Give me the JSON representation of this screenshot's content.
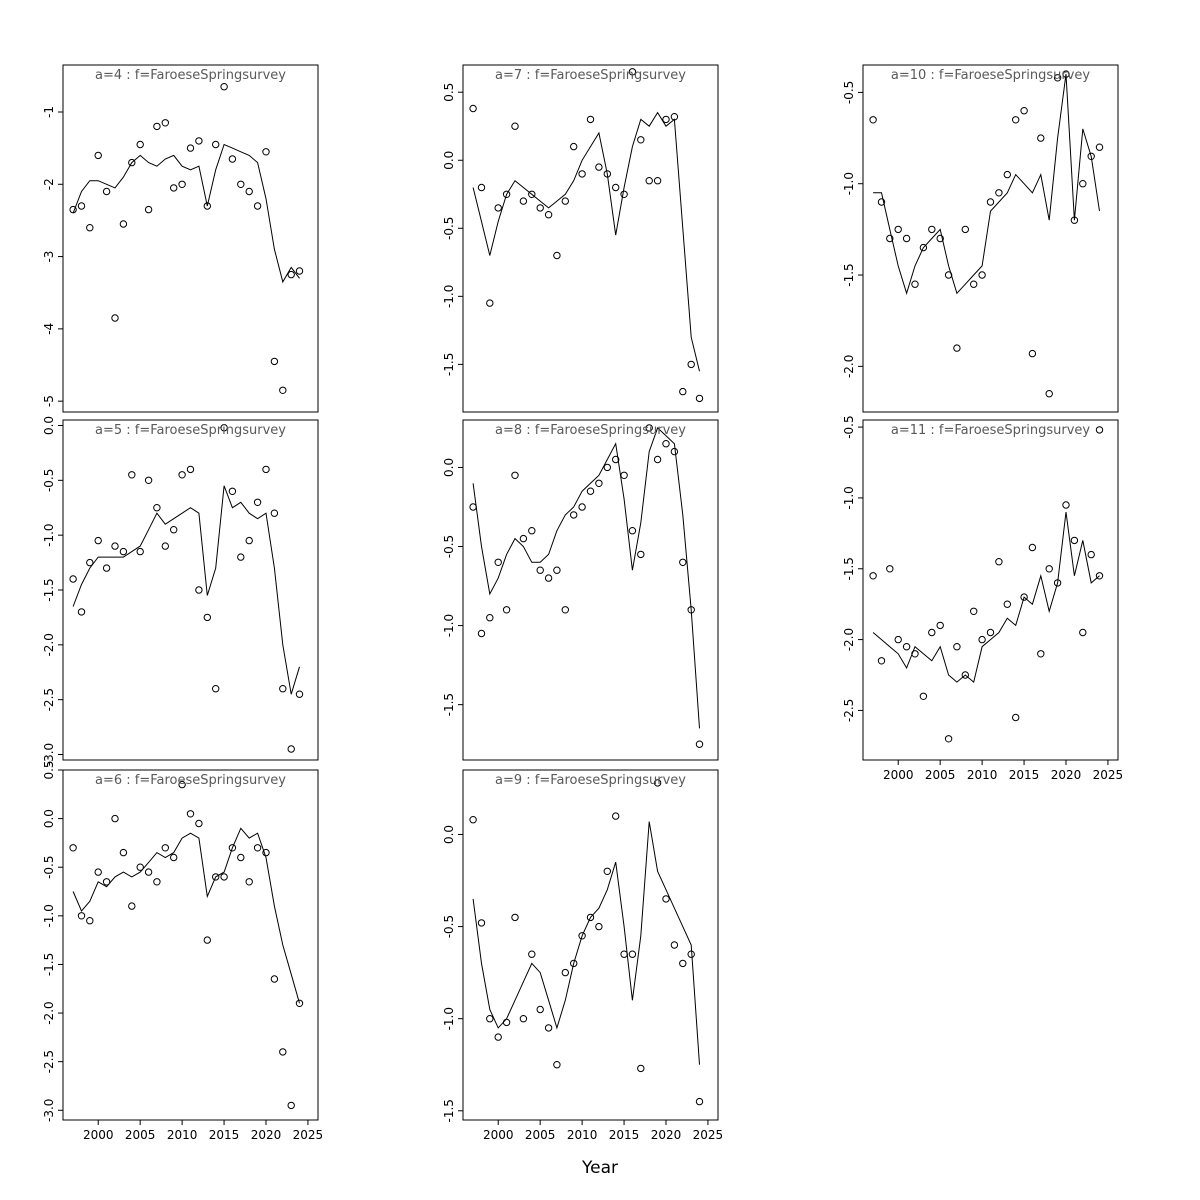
{
  "figure": {
    "xlabel": "Year",
    "xticks": [
      2000,
      2005,
      2010,
      2015,
      2020,
      2025
    ],
    "title_color": "#595959",
    "line_color": "#000000",
    "point_color": "#000000",
    "background": "#ffffff"
  },
  "line_years": [
    1997,
    1998,
    1999,
    2000,
    2001,
    2002,
    2003,
    2004,
    2005,
    2006,
    2007,
    2008,
    2009,
    2010,
    2011,
    2012,
    2013,
    2014,
    2015,
    2016,
    2017,
    2018,
    2019,
    2020,
    2021,
    2022,
    2023,
    2024
  ],
  "chart_data": [
    {
      "type": "scatter+line",
      "a": 4,
      "f": "FaroeseSpringsurvey",
      "title": "a=4  :  f=FaroeseSpringsurvey",
      "xlim": [
        1995.8,
        2026.2
      ],
      "ylim": [
        -5.15,
        -0.35
      ],
      "yticks": [
        -1,
        -2,
        -3,
        -4,
        -5
      ],
      "ytick_labels": [
        "-1",
        "-2",
        "-3",
        "-4",
        "-5"
      ],
      "show_xlabels": false,
      "points": [
        [
          1997,
          -2.35
        ],
        [
          1998,
          -2.3
        ],
        [
          1999,
          -2.6
        ],
        [
          2000,
          -1.6
        ],
        [
          2001,
          -2.1
        ],
        [
          2002,
          -3.85
        ],
        [
          2003,
          -2.55
        ],
        [
          2004,
          -1.7
        ],
        [
          2005,
          -1.45
        ],
        [
          2006,
          -2.35
        ],
        [
          2007,
          -1.2
        ],
        [
          2008,
          -1.15
        ],
        [
          2009,
          -2.05
        ],
        [
          2010,
          -2.0
        ],
        [
          2011,
          -1.5
        ],
        [
          2012,
          -1.4
        ],
        [
          2013,
          -2.3
        ],
        [
          2014,
          -1.45
        ],
        [
          2015,
          -0.65
        ],
        [
          2016,
          -1.65
        ],
        [
          2017,
          -2.0
        ],
        [
          2018,
          -2.1
        ],
        [
          2019,
          -2.3
        ],
        [
          2020,
          -1.55
        ],
        [
          2021,
          -4.45
        ],
        [
          2022,
          -4.85
        ],
        [
          2023,
          -3.25
        ],
        [
          2024,
          -3.2
        ]
      ],
      "line": [
        -2.4,
        -2.1,
        -1.95,
        -1.95,
        -2.0,
        -2.05,
        -1.9,
        -1.7,
        -1.6,
        -1.7,
        -1.75,
        -1.65,
        -1.6,
        -1.75,
        -1.8,
        -1.75,
        -2.3,
        -1.8,
        -1.45,
        -1.5,
        -1.55,
        -1.6,
        -1.7,
        -2.2,
        -2.9,
        -3.35,
        -3.15,
        -3.3
      ]
    },
    {
      "type": "scatter+line",
      "a": 5,
      "f": "FaroeseSpringsurvey",
      "title": "a=5  :  f=FaroeseSpringsurvey",
      "xlim": [
        1995.8,
        2026.2
      ],
      "ylim": [
        -3.05,
        0.05
      ],
      "yticks": [
        0.0,
        -0.5,
        -1.0,
        -1.5,
        -2.0,
        -2.5,
        -3.0
      ],
      "ytick_labels": [
        "0.0",
        "-0.5",
        "-1.0",
        "-1.5",
        "-2.0",
        "-2.5",
        "-3.0"
      ],
      "show_xlabels": false,
      "points": [
        [
          1997,
          -1.4
        ],
        [
          1998,
          -1.7
        ],
        [
          1999,
          -1.25
        ],
        [
          2000,
          -1.05
        ],
        [
          2001,
          -1.3
        ],
        [
          2002,
          -1.1
        ],
        [
          2003,
          -1.15
        ],
        [
          2004,
          -0.45
        ],
        [
          2005,
          -1.15
        ],
        [
          2006,
          -0.5
        ],
        [
          2007,
          -0.75
        ],
        [
          2008,
          -1.1
        ],
        [
          2009,
          -0.95
        ],
        [
          2010,
          -0.45
        ],
        [
          2011,
          -0.4
        ],
        [
          2012,
          -1.5
        ],
        [
          2013,
          -1.75
        ],
        [
          2014,
          -2.4
        ],
        [
          2015,
          -0.02
        ],
        [
          2016,
          -0.6
        ],
        [
          2017,
          -1.2
        ],
        [
          2018,
          -1.05
        ],
        [
          2019,
          -0.7
        ],
        [
          2020,
          -0.4
        ],
        [
          2021,
          -0.8
        ],
        [
          2022,
          -2.4
        ],
        [
          2023,
          -2.95
        ],
        [
          2024,
          -2.45
        ]
      ],
      "line": [
        -1.65,
        -1.45,
        -1.3,
        -1.2,
        -1.2,
        -1.2,
        -1.2,
        -1.15,
        -1.1,
        -0.95,
        -0.8,
        -0.9,
        -0.85,
        -0.8,
        -0.75,
        -0.8,
        -1.55,
        -1.3,
        -0.55,
        -0.75,
        -0.7,
        -0.8,
        -0.85,
        -0.8,
        -1.3,
        -2.0,
        -2.45,
        -2.2
      ]
    },
    {
      "type": "scatter+line",
      "a": 6,
      "f": "FaroeseSpringsurvey",
      "title": "a=6  :  f=FaroeseSpringsurvey",
      "xlim": [
        1995.8,
        2026.2
      ],
      "ylim": [
        -3.1,
        0.5
      ],
      "yticks": [
        0.5,
        0.0,
        -0.5,
        -1.0,
        -1.5,
        -2.0,
        -2.5,
        -3.0
      ],
      "ytick_labels": [
        "0.5",
        "0.0",
        "-0.5",
        "-1.0",
        "-1.5",
        "-2.0",
        "-2.5",
        "-3.0"
      ],
      "show_xlabels": true,
      "points": [
        [
          1997,
          -0.3
        ],
        [
          1998,
          -1.0
        ],
        [
          1999,
          -1.05
        ],
        [
          2000,
          -0.55
        ],
        [
          2001,
          -0.65
        ],
        [
          2002,
          0.0
        ],
        [
          2003,
          -0.35
        ],
        [
          2004,
          -0.9
        ],
        [
          2005,
          -0.5
        ],
        [
          2006,
          -0.55
        ],
        [
          2007,
          -0.65
        ],
        [
          2008,
          -0.3
        ],
        [
          2009,
          -0.4
        ],
        [
          2010,
          0.35
        ],
        [
          2011,
          0.05
        ],
        [
          2012,
          -0.05
        ],
        [
          2013,
          -1.25
        ],
        [
          2014,
          -0.6
        ],
        [
          2015,
          -0.6
        ],
        [
          2016,
          -0.3
        ],
        [
          2017,
          -0.4
        ],
        [
          2018,
          -0.65
        ],
        [
          2019,
          -0.3
        ],
        [
          2020,
          -0.35
        ],
        [
          2021,
          -1.65
        ],
        [
          2022,
          -2.4
        ],
        [
          2023,
          -2.95
        ],
        [
          2024,
          -1.9
        ]
      ],
      "line": [
        -0.75,
        -0.95,
        -0.85,
        -0.65,
        -0.7,
        -0.6,
        -0.55,
        -0.6,
        -0.55,
        -0.45,
        -0.35,
        -0.4,
        -0.35,
        -0.2,
        -0.15,
        -0.2,
        -0.8,
        -0.6,
        -0.55,
        -0.3,
        -0.1,
        -0.2,
        -0.15,
        -0.4,
        -0.9,
        -1.3,
        -1.6,
        -1.9
      ]
    },
    {
      "type": "scatter+line",
      "a": 7,
      "f": "FaroeseSpringsurvey",
      "title": "a=7  :  f=FaroeseSpringsurvey",
      "xlim": [
        1995.8,
        2026.2
      ],
      "ylim": [
        -1.85,
        0.7
      ],
      "yticks": [
        0.5,
        0.0,
        -0.5,
        -1.0,
        -1.5
      ],
      "ytick_labels": [
        "0.5",
        "0.0",
        "-0.5",
        "-1.0",
        "-1.5"
      ],
      "show_xlabels": false,
      "points": [
        [
          1997,
          0.38
        ],
        [
          1998,
          -0.2
        ],
        [
          1999,
          -1.05
        ],
        [
          2000,
          -0.35
        ],
        [
          2001,
          -0.25
        ],
        [
          2002,
          0.25
        ],
        [
          2003,
          -0.3
        ],
        [
          2004,
          -0.25
        ],
        [
          2005,
          -0.35
        ],
        [
          2006,
          -0.4
        ],
        [
          2007,
          -0.7
        ],
        [
          2008,
          -0.3
        ],
        [
          2009,
          0.1
        ],
        [
          2010,
          -0.1
        ],
        [
          2011,
          0.3
        ],
        [
          2012,
          -0.05
        ],
        [
          2013,
          -0.1
        ],
        [
          2014,
          -0.2
        ],
        [
          2015,
          -0.25
        ],
        [
          2016,
          0.65
        ],
        [
          2017,
          0.15
        ],
        [
          2018,
          -0.15
        ],
        [
          2019,
          -0.15
        ],
        [
          2020,
          0.3
        ],
        [
          2021,
          0.32
        ],
        [
          2022,
          -1.7
        ],
        [
          2023,
          -1.5
        ],
        [
          2024,
          -1.75
        ]
      ],
      "line": [
        -0.2,
        -0.45,
        -0.7,
        -0.45,
        -0.25,
        -0.15,
        -0.2,
        -0.25,
        -0.3,
        -0.35,
        -0.3,
        -0.25,
        -0.15,
        0.0,
        0.1,
        0.2,
        -0.1,
        -0.55,
        -0.2,
        0.1,
        0.3,
        0.25,
        0.35,
        0.25,
        0.3,
        -0.5,
        -1.3,
        -1.55
      ]
    },
    {
      "type": "scatter+line",
      "a": 8,
      "f": "FaroeseSpringsurvey",
      "title": "a=8  :  f=FaroeseSpringsurvey",
      "xlim": [
        1995.8,
        2026.2
      ],
      "ylim": [
        -1.85,
        0.3
      ],
      "yticks": [
        0.0,
        -0.5,
        -1.0,
        -1.5
      ],
      "ytick_labels": [
        "0.0",
        "-0.5",
        "-1.0",
        "-1.5"
      ],
      "show_xlabels": false,
      "points": [
        [
          1997,
          -0.25
        ],
        [
          1998,
          -1.05
        ],
        [
          1999,
          -0.95
        ],
        [
          2000,
          -0.6
        ],
        [
          2001,
          -0.9
        ],
        [
          2002,
          -0.05
        ],
        [
          2003,
          -0.45
        ],
        [
          2004,
          -0.4
        ],
        [
          2005,
          -0.65
        ],
        [
          2006,
          -0.7
        ],
        [
          2007,
          -0.65
        ],
        [
          2008,
          -0.9
        ],
        [
          2009,
          -0.3
        ],
        [
          2010,
          -0.25
        ],
        [
          2011,
          -0.15
        ],
        [
          2012,
          -0.1
        ],
        [
          2013,
          0.0
        ],
        [
          2014,
          0.05
        ],
        [
          2015,
          -0.05
        ],
        [
          2016,
          -0.4
        ],
        [
          2017,
          -0.55
        ],
        [
          2018,
          0.25
        ],
        [
          2019,
          0.05
        ],
        [
          2020,
          0.15
        ],
        [
          2021,
          0.1
        ],
        [
          2022,
          -0.6
        ],
        [
          2023,
          -0.9
        ],
        [
          2024,
          -1.75
        ]
      ],
      "line": [
        -0.1,
        -0.5,
        -0.8,
        -0.7,
        -0.55,
        -0.45,
        -0.5,
        -0.6,
        -0.6,
        -0.55,
        -0.4,
        -0.3,
        -0.25,
        -0.15,
        -0.1,
        -0.05,
        0.05,
        0.15,
        -0.2,
        -0.65,
        -0.35,
        0.1,
        0.25,
        0.2,
        0.15,
        -0.3,
        -0.9,
        -1.65
      ]
    },
    {
      "type": "scatter+line",
      "a": 9,
      "f": "FaroeseSpringsurvey",
      "title": "a=9  :  f=FaroeseSpringsurvey",
      "xlim": [
        1995.8,
        2026.2
      ],
      "ylim": [
        -1.55,
        0.35
      ],
      "yticks": [
        0.0,
        -0.5,
        -1.0,
        -1.5
      ],
      "ytick_labels": [
        "0.0",
        "-0.5",
        "-1.0",
        "-1.5"
      ],
      "show_xlabels": true,
      "points": [
        [
          1997,
          0.08
        ],
        [
          1998,
          -0.48
        ],
        [
          1999,
          -1.0
        ],
        [
          2000,
          -1.1
        ],
        [
          2001,
          -1.02
        ],
        [
          2002,
          -0.45
        ],
        [
          2003,
          -1.0
        ],
        [
          2004,
          -0.65
        ],
        [
          2005,
          -0.95
        ],
        [
          2006,
          -1.05
        ],
        [
          2007,
          -1.25
        ],
        [
          2008,
          -0.75
        ],
        [
          2009,
          -0.7
        ],
        [
          2010,
          -0.55
        ],
        [
          2011,
          -0.45
        ],
        [
          2012,
          -0.5
        ],
        [
          2013,
          -0.2
        ],
        [
          2014,
          0.1
        ],
        [
          2015,
          -0.65
        ],
        [
          2016,
          -0.65
        ],
        [
          2017,
          -1.27
        ],
        [
          2019,
          0.28
        ],
        [
          2020,
          -0.35
        ],
        [
          2021,
          -0.6
        ],
        [
          2022,
          -0.7
        ],
        [
          2023,
          -0.65
        ],
        [
          2024,
          -1.45
        ]
      ],
      "line": [
        -0.35,
        -0.7,
        -0.95,
        -1.05,
        -1.0,
        -0.9,
        -0.8,
        -0.7,
        -0.75,
        -0.9,
        -1.05,
        -0.9,
        -0.7,
        -0.55,
        -0.45,
        -0.4,
        -0.3,
        -0.15,
        -0.5,
        -0.9,
        -0.55,
        0.07,
        -0.2,
        -0.3,
        -0.4,
        -0.5,
        -0.6,
        -1.25
      ]
    },
    {
      "type": "scatter+line",
      "a": 10,
      "f": "FaroeseSpringsurvey",
      "title": "a=10  :  f=FaroeseSpringsurvey",
      "xlim": [
        1995.8,
        2026.2
      ],
      "ylim": [
        -2.25,
        -0.35
      ],
      "yticks": [
        -0.5,
        -1.0,
        -1.5,
        -2.0
      ],
      "ytick_labels": [
        "-0.5",
        "-1.0",
        "-1.5",
        "-2.0"
      ],
      "show_xlabels": false,
      "points": [
        [
          1997,
          -0.65
        ],
        [
          1998,
          -1.1
        ],
        [
          1999,
          -1.3
        ],
        [
          2000,
          -1.25
        ],
        [
          2001,
          -1.3
        ],
        [
          2002,
          -1.55
        ],
        [
          2003,
          -1.35
        ],
        [
          2004,
          -1.25
        ],
        [
          2005,
          -1.3
        ],
        [
          2006,
          -1.5
        ],
        [
          2007,
          -1.9
        ],
        [
          2008,
          -1.25
        ],
        [
          2009,
          -1.55
        ],
        [
          2010,
          -1.5
        ],
        [
          2011,
          -1.1
        ],
        [
          2012,
          -1.05
        ],
        [
          2013,
          -0.95
        ],
        [
          2014,
          -0.65
        ],
        [
          2015,
          -0.6
        ],
        [
          2016,
          -1.93
        ],
        [
          2017,
          -0.75
        ],
        [
          2018,
          -2.15
        ],
        [
          2019,
          -0.42
        ],
        [
          2020,
          -0.4
        ],
        [
          2021,
          -1.2
        ],
        [
          2022,
          -1.0
        ],
        [
          2023,
          -0.85
        ],
        [
          2024,
          -0.8
        ]
      ],
      "line": [
        -1.05,
        -1.05,
        -1.25,
        -1.45,
        -1.6,
        -1.45,
        -1.35,
        -1.3,
        -1.25,
        -1.45,
        -1.6,
        -1.55,
        -1.5,
        -1.45,
        -1.15,
        -1.1,
        -1.05,
        -0.95,
        -1.0,
        -1.05,
        -0.95,
        -1.2,
        -0.75,
        -0.4,
        -1.2,
        -0.7,
        -0.85,
        -1.15
      ]
    },
    {
      "type": "scatter+line",
      "a": 11,
      "f": "FaroeseSpringsurvey",
      "title": "a=11  :  f=FaroeseSpringsurvey",
      "xlim": [
        1995.8,
        2026.2
      ],
      "ylim": [
        -2.85,
        -0.45
      ],
      "yticks": [
        -0.5,
        -1.0,
        -1.5,
        -2.0,
        -2.5
      ],
      "ytick_labels": [
        "-0.5",
        "-1.0",
        "-1.5",
        "-2.0",
        "-2.5"
      ],
      "show_xlabels": true,
      "points": [
        [
          1997,
          -1.55
        ],
        [
          1998,
          -2.15
        ],
        [
          1999,
          -1.5
        ],
        [
          2000,
          -2.0
        ],
        [
          2001,
          -2.05
        ],
        [
          2002,
          -2.1
        ],
        [
          2003,
          -2.4
        ],
        [
          2004,
          -1.95
        ],
        [
          2005,
          -1.9
        ],
        [
          2006,
          -2.7
        ],
        [
          2007,
          -2.05
        ],
        [
          2008,
          -2.25
        ],
        [
          2009,
          -1.8
        ],
        [
          2010,
          -2.0
        ],
        [
          2011,
          -1.95
        ],
        [
          2012,
          -1.45
        ],
        [
          2013,
          -1.75
        ],
        [
          2014,
          -2.55
        ],
        [
          2015,
          -1.7
        ],
        [
          2016,
          -1.35
        ],
        [
          2017,
          -2.1
        ],
        [
          2018,
          -1.5
        ],
        [
          2019,
          -1.6
        ],
        [
          2020,
          -1.05
        ],
        [
          2021,
          -1.3
        ],
        [
          2022,
          -1.95
        ],
        [
          2023,
          -1.4
        ],
        [
          2024,
          -1.55
        ],
        [
          2024,
          -0.52
        ]
      ],
      "line": [
        -1.95,
        -2.0,
        -2.05,
        -2.1,
        -2.2,
        -2.05,
        -2.1,
        -2.15,
        -2.05,
        -2.25,
        -2.3,
        -2.25,
        -2.3,
        -2.05,
        -2.0,
        -1.95,
        -1.85,
        -1.9,
        -1.7,
        -1.75,
        -1.55,
        -1.8,
        -1.6,
        -1.1,
        -1.55,
        -1.3,
        -1.6,
        -1.55
      ]
    }
  ]
}
